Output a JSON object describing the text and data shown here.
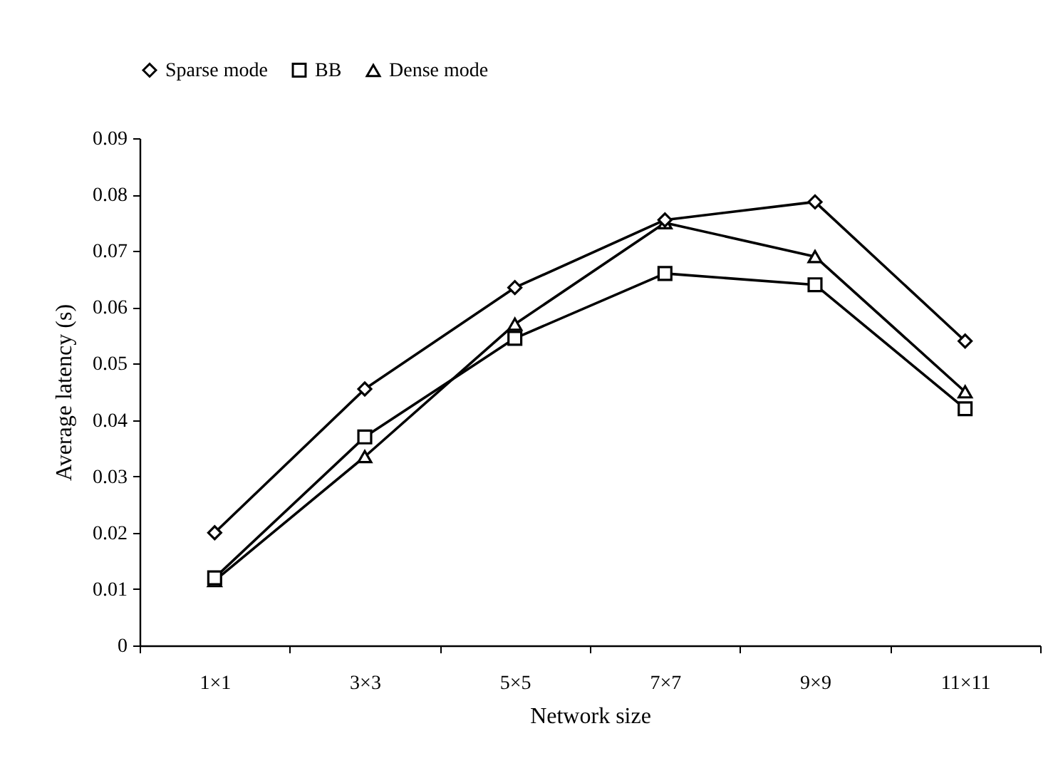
{
  "chart_data": {
    "type": "line",
    "xlabel": "Network size",
    "ylabel": "Average latency (s)",
    "categories": [
      "1×1",
      "3×3",
      "5×5",
      "7×7",
      "9×9",
      "11×11"
    ],
    "series": [
      {
        "name": "Sparse mode",
        "color": "#000000",
        "marker": "diamond",
        "values": [
          0.02,
          0.0455,
          0.0635,
          0.0755,
          0.0787,
          0.054
        ]
      },
      {
        "name": "BB",
        "color": "#000000",
        "marker": "square",
        "values": [
          0.012,
          0.037,
          0.0545,
          0.066,
          0.064,
          0.042
        ]
      },
      {
        "name": "Dense mode",
        "color": "#000000",
        "marker": "triangle",
        "values": [
          0.0115,
          0.0335,
          0.057,
          0.075,
          0.069,
          0.045
        ]
      }
    ],
    "ylim": [
      0,
      0.09
    ],
    "yticks": [
      0,
      0.01,
      0.02,
      0.03,
      0.04,
      0.05,
      0.06,
      0.07,
      0.08,
      0.09
    ],
    "grid": false,
    "legend": "top",
    "line_style": "solid"
  }
}
